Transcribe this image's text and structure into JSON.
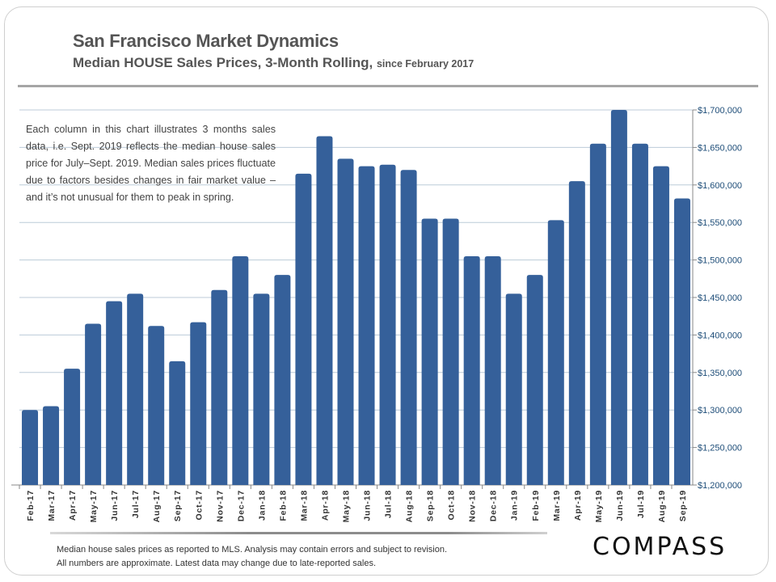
{
  "header": {
    "title": "San Francisco Market Dynamics",
    "subtitle": "Median HOUSE Sales Prices, 3-Month Rolling,",
    "subtitle_small": "since February 2017"
  },
  "note": "Each column in this chart illustrates 3 months sales data, i.e. Sept. 2019 reflects the median house sales price for July–Sept. 2019. Median sales prices fluctuate due to factors besides changes in fair market value – and it’s not unusual for them to peak in spring.",
  "footer": {
    "line1": "Median house sales prices as reported to MLS.  Analysis may contain errors and subject to revision.",
    "line2": "All numbers are approximate. Latest data may change due to late-reported sales."
  },
  "logo": "COMPASS",
  "chart_data": {
    "type": "bar",
    "title": "",
    "xlabel": "",
    "ylabel": "",
    "ylim": [
      1200000,
      1700000
    ],
    "y_ticks": [
      1200000,
      1250000,
      1300000,
      1350000,
      1400000,
      1450000,
      1500000,
      1550000,
      1600000,
      1650000,
      1700000
    ],
    "y_tick_labels": [
      "$1,200,000",
      "$1,250,000",
      "$1,300,000",
      "$1,350,000",
      "$1,400,000",
      "$1,450,000",
      "$1,500,000",
      "$1,550,000",
      "$1,600,000",
      "$1,650,000",
      "$1,700,000"
    ],
    "y_axis_side": "right",
    "grid": true,
    "bar_color": "#35609a",
    "categories": [
      "Feb-17",
      "Mar-17",
      "Apr-17",
      "May-17",
      "Jun-17",
      "Jul-17",
      "Aug-17",
      "Sep-17",
      "Oct-17",
      "Nov-17",
      "Dec-17",
      "Jan-18",
      "Feb-18",
      "Mar-18",
      "Apr-18",
      "May-18",
      "Jun-18",
      "Jul-18",
      "Aug-18",
      "Sep-18",
      "Oct-18",
      "Nov-18",
      "Dec-18",
      "Jan-19",
      "Feb-19",
      "Mar-19",
      "Apr-19",
      "May-19",
      "Jun-19",
      "Jul-19",
      "Aug-19",
      "Sep-19"
    ],
    "values": [
      1300000,
      1305000,
      1355000,
      1415000,
      1445000,
      1455000,
      1412000,
      1365000,
      1417000,
      1460000,
      1505000,
      1455000,
      1480000,
      1615000,
      1665000,
      1635000,
      1625000,
      1627000,
      1620000,
      1555000,
      1555000,
      1505000,
      1505000,
      1455000,
      1480000,
      1553000,
      1605000,
      1655000,
      1700000,
      1655000,
      1625000,
      1582000
    ]
  }
}
